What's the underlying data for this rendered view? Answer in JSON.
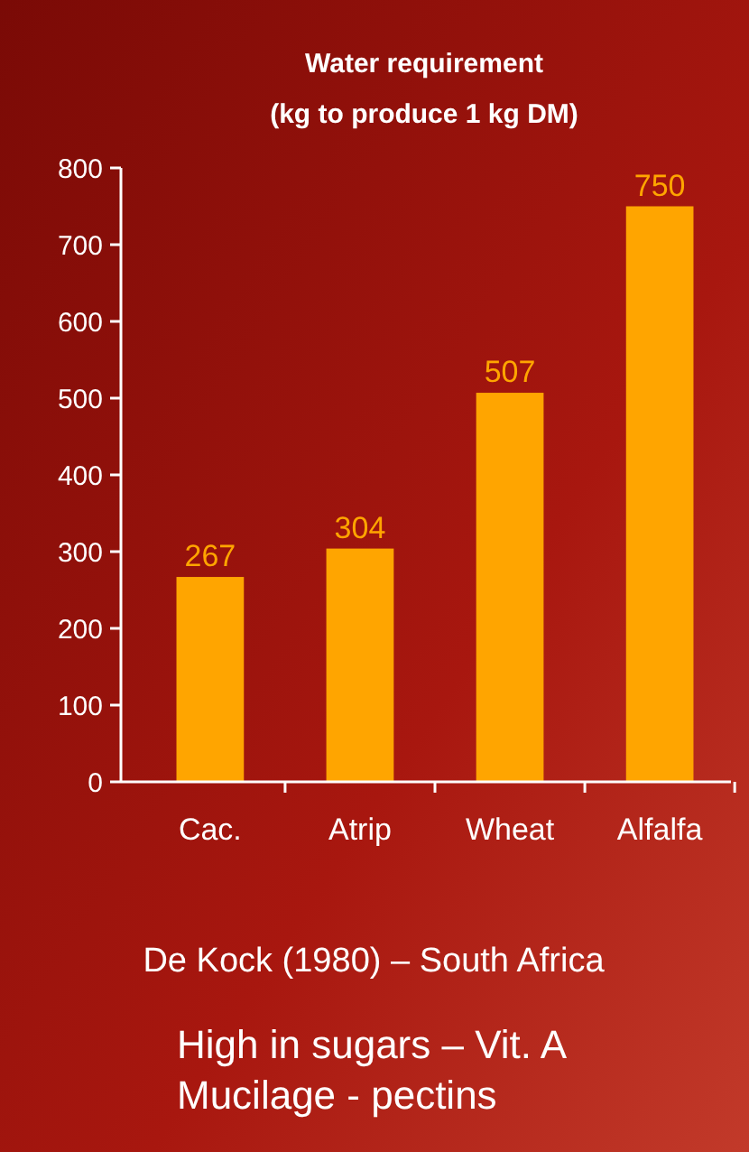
{
  "chart_data": {
    "type": "bar",
    "title": "Water requirement",
    "subtitle": "(kg to produce 1 kg DM)",
    "categories": [
      "Cac.",
      "Atrip",
      "Wheat",
      "Alfalfa"
    ],
    "values": [
      267,
      304,
      507,
      750
    ],
    "color": "#ffa500",
    "ylim": [
      0,
      800
    ],
    "yticks": [
      0,
      100,
      200,
      300,
      400,
      500,
      600,
      700,
      800
    ],
    "data_labels": true,
    "grid": false,
    "annotations": [
      "De Kock (1980) – South Africa",
      "High in sugars – Vit. A",
      "Mucilage - pectins"
    ]
  }
}
